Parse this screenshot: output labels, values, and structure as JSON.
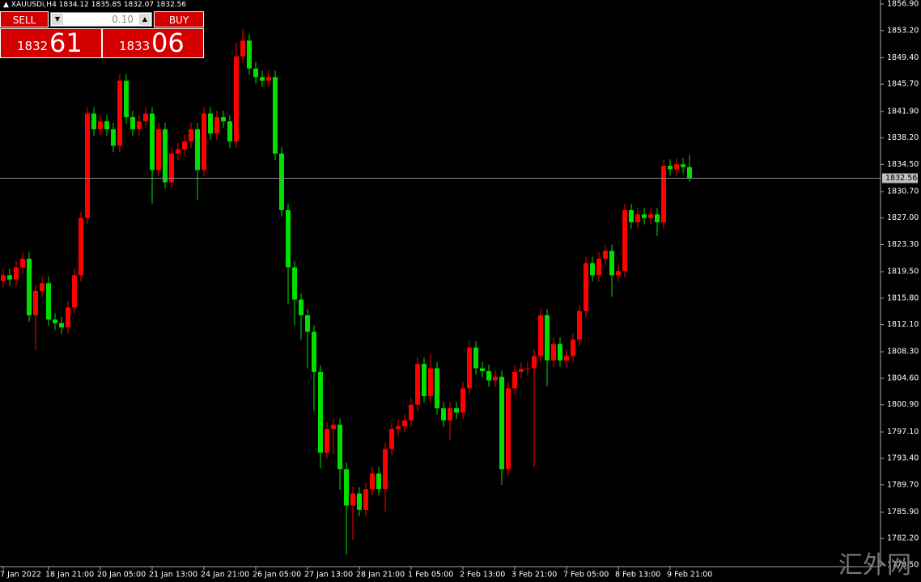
{
  "chart_data": {
    "type": "candlestick",
    "symbol": "XAUUSDi,H4",
    "ohlc_text": "1834.12 1835.85 1832.07 1832.56",
    "up_color": "#ff0000",
    "down_color": "#00e000",
    "background": "#000000",
    "current_price": 1832.56,
    "current_price_label": "1832.56",
    "categories": [
      "7 Jan 2022",
      null,
      null,
      null,
      null,
      null,
      null,
      "18 Jan 21:00",
      null,
      null,
      null,
      null,
      null,
      null,
      null,
      "20 Jan 05:00",
      null,
      null,
      null,
      null,
      null,
      null,
      null,
      "21 Jan 13:00",
      null,
      null,
      null,
      null,
      null,
      null,
      null,
      "24 Jan 21:00",
      null,
      null,
      null,
      null,
      null,
      null,
      null,
      "26 Jan 05:00",
      null,
      null,
      null,
      null,
      null,
      null,
      null,
      "27 Jan 13:00",
      null,
      null,
      null,
      null,
      null,
      null,
      null,
      "28 Jan 21:00",
      null,
      null,
      null,
      null,
      null,
      null,
      null,
      "1 Feb 05:00",
      null,
      null,
      null,
      null,
      null,
      null,
      null,
      "2 Feb 13:00",
      null,
      null,
      null,
      null,
      null,
      null,
      null,
      "3 Feb 21:00",
      null,
      null,
      null,
      null,
      null,
      null,
      null,
      "7 Feb 05:00",
      null,
      null,
      null,
      null,
      null,
      null,
      null,
      "8 Feb 13:00",
      null,
      null,
      null,
      null,
      null,
      null,
      null,
      "9 Feb 21:00",
      null,
      null,
      null
    ],
    "open": [
      1818.2,
      1819.0,
      1818.4,
      1820.1,
      1821.3,
      1813.4,
      1816.8,
      1817.9,
      1812.8,
      1812.3,
      1811.7,
      1814.5,
      1819.0,
      1827.0,
      1841.6,
      1839.4,
      1840.5,
      1839.4,
      1837.1,
      1846.2,
      1841.1,
      1839.4,
      1840.5,
      1841.6,
      1833.7,
      1839.4,
      1832.0,
      1836.0,
      1836.6,
      1837.7,
      1839.4,
      1833.7,
      1841.6,
      1838.8,
      1841.1,
      1840.5,
      1837.7,
      1849.6,
      1851.8,
      1847.9,
      1846.7,
      1846.2,
      1846.7,
      1836.0,
      1828.1,
      1820.1,
      1815.6,
      1813.4,
      1811.1,
      1805.5,
      1794.2,
      1797.5,
      1798.1,
      1791.9,
      1786.8,
      1788.5,
      1786.2,
      1789.1,
      1791.3,
      1789.1,
      1794.7,
      1797.5,
      1797.9,
      1798.7,
      1800.9,
      1806.6,
      1802.1,
      1806.0,
      1800.4,
      1798.7,
      1800.4,
      1799.8,
      1803.2,
      1808.9,
      1806.0,
      1805.6,
      1804.3,
      1804.8,
      1791.9,
      1803.2,
      1805.5,
      1805.9,
      1806.0,
      1807.7,
      1813.4,
      1807.1,
      1809.4,
      1807.1,
      1807.7,
      1810.0,
      1814.0,
      1820.7,
      1819.0,
      1821.3,
      1822.4,
      1819.0,
      1819.6,
      1828.1,
      1826.4,
      1827.5,
      1827.0,
      1827.5,
      1826.4,
      1834.3,
      1833.8,
      1834.5,
      1834.12
    ],
    "high": [
      1819.9,
      1819.9,
      1821.0,
      1822.2,
      1822.2,
      1817.7,
      1818.8,
      1818.8,
      1813.7,
      1813.2,
      1815.4,
      1819.9,
      1827.9,
      1842.5,
      1842.5,
      1841.4,
      1841.4,
      1840.3,
      1847.1,
      1847.1,
      1842.0,
      1841.4,
      1842.5,
      1842.5,
      1840.3,
      1840.3,
      1836.9,
      1837.5,
      1838.6,
      1840.3,
      1840.3,
      1842.5,
      1842.5,
      1842.0,
      1842.0,
      1841.4,
      1851.5,
      1853.4,
      1852.7,
      1848.8,
      1847.6,
      1847.6,
      1847.6,
      1836.9,
      1829.0,
      1821.0,
      1816.5,
      1814.3,
      1812.0,
      1806.4,
      1798.4,
      1799.0,
      1799.0,
      1792.8,
      1789.4,
      1789.4,
      1790.0,
      1792.2,
      1792.2,
      1795.6,
      1798.4,
      1798.8,
      1799.6,
      1801.8,
      1807.5,
      1807.5,
      1808.0,
      1806.9,
      1801.3,
      1801.3,
      1801.3,
      1804.1,
      1809.8,
      1809.8,
      1806.9,
      1806.5,
      1805.7,
      1805.7,
      1804.1,
      1806.4,
      1806.8,
      1806.9,
      1808.6,
      1814.3,
      1814.3,
      1810.3,
      1810.3,
      1808.6,
      1810.9,
      1814.9,
      1821.6,
      1821.6,
      1822.2,
      1823.3,
      1823.3,
      1820.5,
      1829.0,
      1829.0,
      1828.4,
      1828.4,
      1828.4,
      1828.4,
      1835.2,
      1835.2,
      1835.4,
      1835.4,
      1835.85
    ],
    "low": [
      1817.3,
      1817.5,
      1817.5,
      1819.2,
      1812.5,
      1808.5,
      1815.9,
      1811.9,
      1811.4,
      1810.8,
      1810.8,
      1813.6,
      1818.1,
      1826.1,
      1838.5,
      1838.5,
      1838.5,
      1836.2,
      1836.2,
      1840.2,
      1838.5,
      1838.5,
      1839.6,
      1829.0,
      1832.8,
      1831.1,
      1831.1,
      1835.1,
      1835.7,
      1836.8,
      1829.5,
      1832.8,
      1837.9,
      1837.9,
      1839.6,
      1836.8,
      1836.8,
      1848.7,
      1847.0,
      1845.8,
      1845.3,
      1845.3,
      1835.1,
      1827.2,
      1815.0,
      1812.0,
      1810.0,
      1806.0,
      1800.0,
      1792.0,
      1793.3,
      1794.0,
      1789.0,
      1780.0,
      1782.0,
      1785.3,
      1785.3,
      1788.2,
      1788.2,
      1786.0,
      1793.8,
      1796.6,
      1797.0,
      1797.8,
      1800.0,
      1801.2,
      1801.2,
      1799.5,
      1797.8,
      1796.0,
      1798.9,
      1798.9,
      1802.3,
      1805.1,
      1804.7,
      1803.4,
      1803.4,
      1789.7,
      1791.0,
      1802.3,
      1804.6,
      1805.0,
      1792.2,
      1806.8,
      1803.5,
      1806.2,
      1806.2,
      1806.2,
      1806.8,
      1809.1,
      1813.1,
      1818.1,
      1818.1,
      1820.4,
      1816.0,
      1818.1,
      1818.7,
      1825.5,
      1825.5,
      1826.1,
      1826.1,
      1824.5,
      1825.5,
      1832.9,
      1832.9,
      1833.2,
      1832.07
    ],
    "close": [
      1819.0,
      1818.4,
      1820.1,
      1821.3,
      1813.4,
      1816.8,
      1817.9,
      1812.8,
      1812.3,
      1811.7,
      1814.5,
      1819.0,
      1827.0,
      1841.6,
      1839.4,
      1840.5,
      1839.4,
      1837.1,
      1846.2,
      1841.1,
      1839.4,
      1840.5,
      1841.6,
      1833.7,
      1839.4,
      1832.0,
      1836.0,
      1836.6,
      1837.7,
      1839.4,
      1833.7,
      1841.6,
      1838.8,
      1841.1,
      1840.5,
      1837.7,
      1849.6,
      1851.8,
      1847.9,
      1846.7,
      1846.2,
      1846.7,
      1836.0,
      1828.1,
      1820.1,
      1815.6,
      1813.4,
      1811.1,
      1805.5,
      1794.2,
      1797.5,
      1798.1,
      1791.9,
      1786.8,
      1788.5,
      1786.2,
      1789.1,
      1791.3,
      1789.1,
      1794.7,
      1797.5,
      1797.9,
      1798.7,
      1800.9,
      1806.6,
      1802.1,
      1806.0,
      1800.4,
      1798.7,
      1800.4,
      1799.8,
      1803.2,
      1808.9,
      1806.0,
      1805.6,
      1804.3,
      1804.8,
      1791.9,
      1803.2,
      1805.5,
      1805.9,
      1806.0,
      1807.7,
      1813.4,
      1807.1,
      1809.4,
      1807.1,
      1807.7,
      1810.0,
      1814.0,
      1820.7,
      1819.0,
      1821.3,
      1822.4,
      1819.0,
      1819.6,
      1828.1,
      1826.4,
      1827.5,
      1827.0,
      1827.5,
      1826.4,
      1834.3,
      1833.8,
      1834.5,
      1834.12,
      1832.56
    ],
    "ylim": [
      1778.27,
      1857.47
    ],
    "yticks": [
      {
        "value": 1856.9,
        "label": "1856.90"
      },
      {
        "value": 1853.2,
        "label": "1853.20"
      },
      {
        "value": 1849.4,
        "label": "1849.40"
      },
      {
        "value": 1845.7,
        "label": "1845.70"
      },
      {
        "value": 1841.9,
        "label": "1841.90"
      },
      {
        "value": 1838.2,
        "label": "1838.20"
      },
      {
        "value": 1834.5,
        "label": "1834.50"
      },
      {
        "value": 1830.7,
        "label": "1830.70"
      },
      {
        "value": 1827.0,
        "label": "1827.00"
      },
      {
        "value": 1823.3,
        "label": "1823.30"
      },
      {
        "value": 1819.5,
        "label": "1819.50"
      },
      {
        "value": 1815.8,
        "label": "1815.80"
      },
      {
        "value": 1812.1,
        "label": "1812.10"
      },
      {
        "value": 1808.3,
        "label": "1808.30"
      },
      {
        "value": 1804.6,
        "label": "1804.60"
      },
      {
        "value": 1800.9,
        "label": "1800.90"
      },
      {
        "value": 1797.1,
        "label": "1797.10"
      },
      {
        "value": 1793.4,
        "label": "1793.40"
      },
      {
        "value": 1789.7,
        "label": "1789.70"
      },
      {
        "value": 1785.9,
        "label": "1785.90"
      },
      {
        "value": 1782.2,
        "label": "1782.20"
      },
      {
        "value": 1778.5,
        "label": "1778.50"
      }
    ]
  },
  "trade_panel": {
    "sell": "SELL",
    "buy": "BUY",
    "lot": "0.10",
    "bid_big": "61",
    "bid_small": "1832",
    "ask_big": "06",
    "ask_small": "1833"
  },
  "watermark": "汇外网"
}
